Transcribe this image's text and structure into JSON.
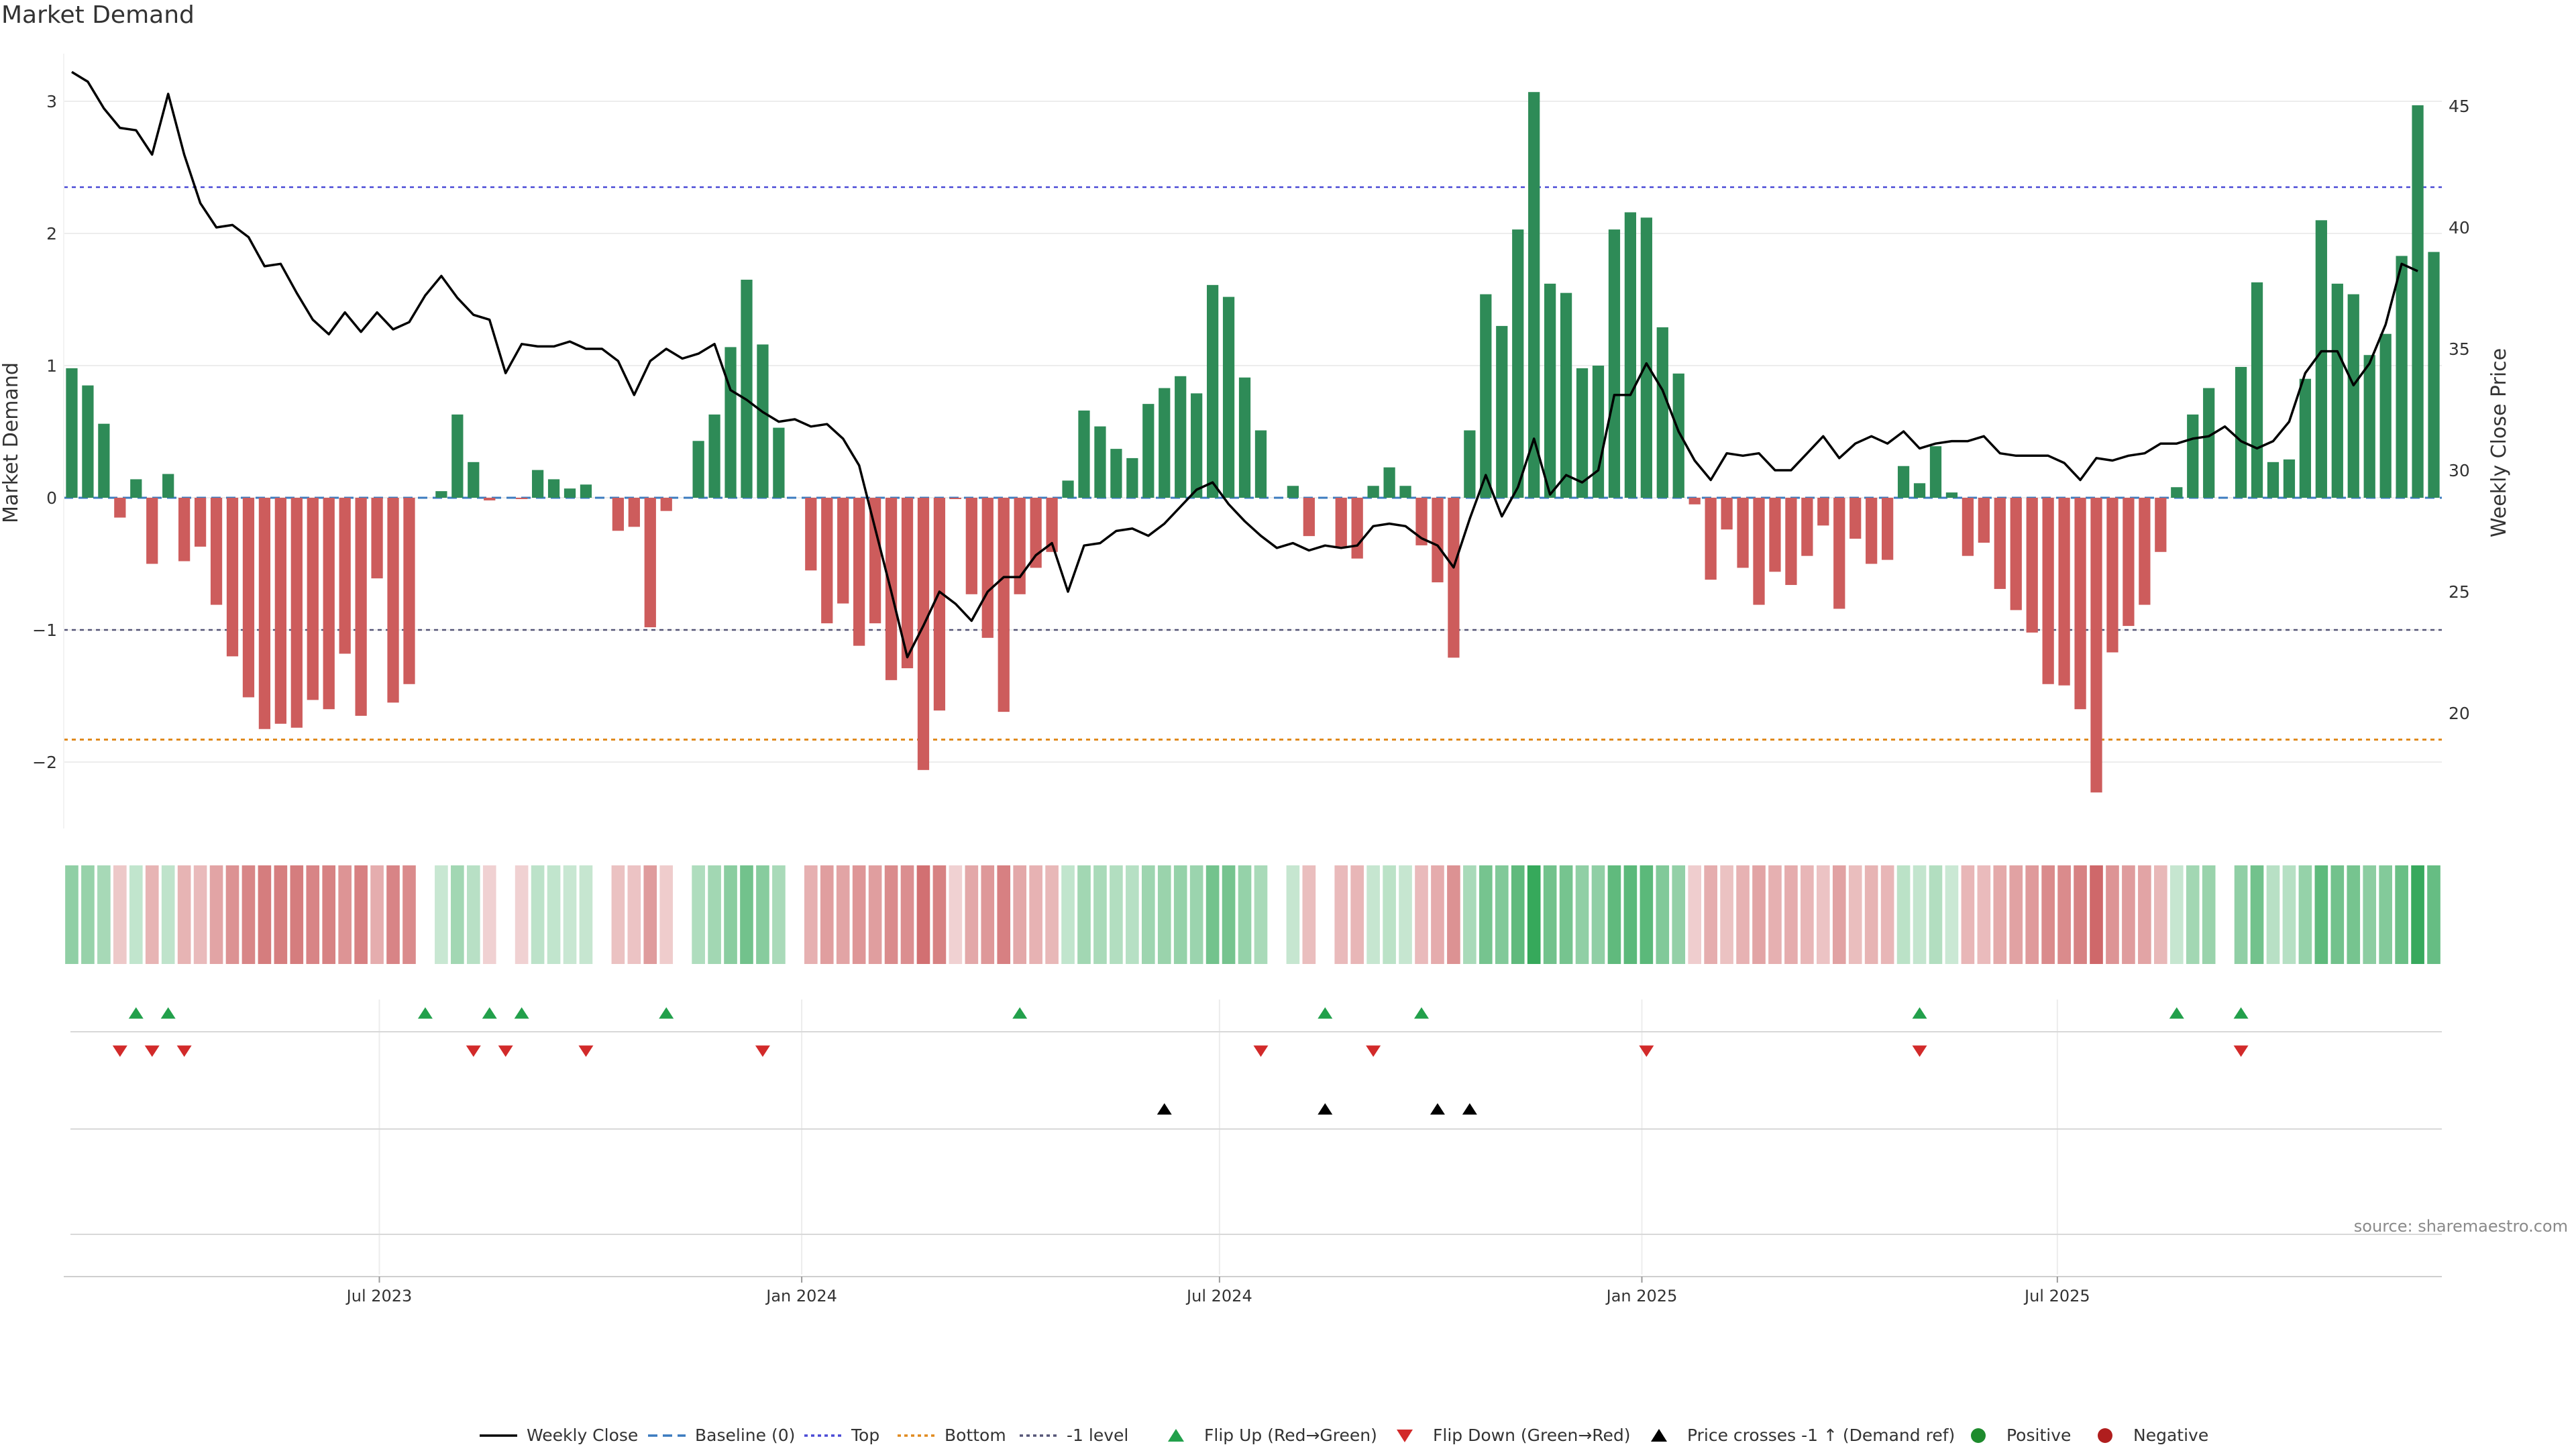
{
  "title": "Market Demand",
  "source": "source: sharemaestro.com",
  "chart_data": {
    "type": "bar",
    "title": "Market Demand",
    "ylabel": "Market Demand",
    "y2label": "Weekly Close Price",
    "ylim": [
      -2.5,
      3.1
    ],
    "y2lim": [
      16.8,
      46.8
    ],
    "yticks": [
      3,
      2,
      1,
      0,
      -1,
      -2
    ],
    "yticklabels": [
      "3",
      "2",
      "1",
      "0",
      "−1",
      "−2"
    ],
    "y2ticks": [
      45,
      40,
      35,
      30,
      25,
      20
    ],
    "x_start": "2023-02-17",
    "xticks": [
      "2023-07-01",
      "2024-01-01",
      "2024-07-01",
      "2025-01-01",
      "2025-07-01"
    ],
    "xticklabels": [
      "Jul 2023",
      "Jan 2024",
      "Jul 2024",
      "Jan 2025",
      "Jul 2025"
    ],
    "reference_lines": {
      "top": 2.35,
      "bottom": -1.83,
      "minus_one": -1,
      "baseline": 0
    },
    "demand": [
      0.98,
      0.85,
      0.56,
      -0.15,
      0.14,
      -0.5,
      0.18,
      -0.48,
      -0.37,
      -0.81,
      -1.2,
      -1.51,
      -1.75,
      -1.71,
      -1.74,
      -1.53,
      -1.6,
      -1.18,
      -1.65,
      -0.61,
      -1.55,
      -1.41,
      0,
      0.05,
      0.63,
      0.27,
      -0.02,
      0,
      -0.01,
      0.21,
      0.14,
      0.07,
      0.1,
      0,
      -0.25,
      -0.22,
      -0.98,
      -0.1,
      0,
      0.43,
      0.63,
      1.14,
      1.65,
      1.16,
      0.53,
      0,
      -0.55,
      -0.95,
      -0.8,
      -1.12,
      -0.95,
      -1.38,
      -1.29,
      -2.06,
      -1.61,
      -0.01,
      -0.73,
      -1.06,
      -1.62,
      -0.73,
      -0.53,
      -0.41,
      0.13,
      0.66,
      0.54,
      0.37,
      0.3,
      0.71,
      0.83,
      0.92,
      0.79,
      1.61,
      1.52,
      0.91,
      0.51,
      0,
      0.09,
      -0.29,
      0,
      -0.37,
      -0.46,
      0.09,
      0.23,
      0.09,
      -0.36,
      -0.64,
      -1.21,
      0.51,
      1.54,
      1.3,
      2.03,
      3.07,
      1.62,
      1.55,
      0.98,
      1.0,
      2.03,
      2.16,
      2.12,
      1.29,
      0.94,
      -0.05,
      -0.62,
      -0.24,
      -0.53,
      -0.81,
      -0.56,
      -0.66,
      -0.44,
      -0.21,
      -0.84,
      -0.31,
      -0.5,
      -0.47,
      0.24,
      0.11,
      0.39,
      0.04,
      -0.44,
      -0.34,
      -0.69,
      -0.85,
      -1.02,
      -1.41,
      -1.42,
      -1.6,
      -2.23,
      -1.17,
      -0.97,
      -0.81,
      -0.41,
      0.08,
      0.63,
      0.83,
      0,
      0.99,
      1.63,
      0.27,
      0.29,
      0.9,
      2.1,
      1.62,
      1.54,
      1.08,
      1.24,
      1.83,
      2.97,
      1.86
    ],
    "weekly_close": [
      46.4,
      46.0,
      44.9,
      44.1,
      44.0,
      43.0,
      45.5,
      43.0,
      41.0,
      40.0,
      40.1,
      39.6,
      38.4,
      38.5,
      37.3,
      36.2,
      35.6,
      36.5,
      35.7,
      36.5,
      35.8,
      36.1,
      37.2,
      38.0,
      37.1,
      36.4,
      36.2,
      34.0,
      35.2,
      35.1,
      35.1,
      35.3,
      35.0,
      35.0,
      34.5,
      33.1,
      34.5,
      35.0,
      34.6,
      34.8,
      35.2,
      33.3,
      32.9,
      32.4,
      32.0,
      32.1,
      31.8,
      31.9,
      31.3,
      30.2,
      27.6,
      25.0,
      22.3,
      23.6,
      25.0,
      24.5,
      23.8,
      25.0,
      25.6,
      25.6,
      26.5,
      27.0,
      25.0,
      26.9,
      27.0,
      27.5,
      27.6,
      27.3,
      27.8,
      28.5,
      29.2,
      29.5,
      28.6,
      27.9,
      27.3,
      26.8,
      27.0,
      26.7,
      26.9,
      26.8,
      26.9,
      27.7,
      27.8,
      27.7,
      27.2,
      26.9,
      26.0,
      28.0,
      29.8,
      28.1,
      29.3,
      31.3,
      29.0,
      29.8,
      29.5,
      30.0,
      33.1,
      33.1,
      34.4,
      33.3,
      31.6,
      30.4,
      29.6,
      30.7,
      30.6,
      30.7,
      30.0,
      30.0,
      30.7,
      31.4,
      30.5,
      31.1,
      31.4,
      31.1,
      31.6,
      30.9,
      31.1,
      31.2,
      31.2,
      31.4,
      30.7,
      30.6,
      30.6,
      30.6,
      30.3,
      29.6,
      30.5,
      30.4,
      30.6,
      30.7,
      31.1,
      31.1,
      31.3,
      31.4,
      31.8,
      31.2,
      30.9,
      31.2,
      32.0,
      34.0,
      34.9,
      34.9,
      33.5,
      34.4,
      36.0,
      38.5,
      38.2
    ],
    "flip_up_idx": [
      4,
      6,
      22,
      26,
      28,
      37,
      59,
      78,
      84,
      115,
      131,
      135
    ],
    "flip_down_idx": [
      3,
      5,
      7,
      25,
      27,
      32,
      43,
      74,
      81,
      98,
      115,
      135
    ],
    "price_cross_idx": [
      68,
      78,
      85,
      87
    ],
    "legend": [
      "Weekly Close",
      "Baseline (0)",
      "Top",
      "Bottom",
      "-1 level",
      "Flip Up (Red→Green)",
      "Flip Down (Green→Red)",
      "Price crosses -1 ↑ (Demand ref)",
      "Positive",
      "Negative"
    ]
  },
  "colors": {
    "positive": "#2e8b57",
    "negative": "#cd5c5c",
    "price": "#000000",
    "top": "#4a4ad6",
    "bottom": "#e08a1e",
    "minus_one": "#555577",
    "baseline": "#3b7bbf",
    "flip_up": "#22a04b",
    "flip_down": "#d22a2a"
  }
}
